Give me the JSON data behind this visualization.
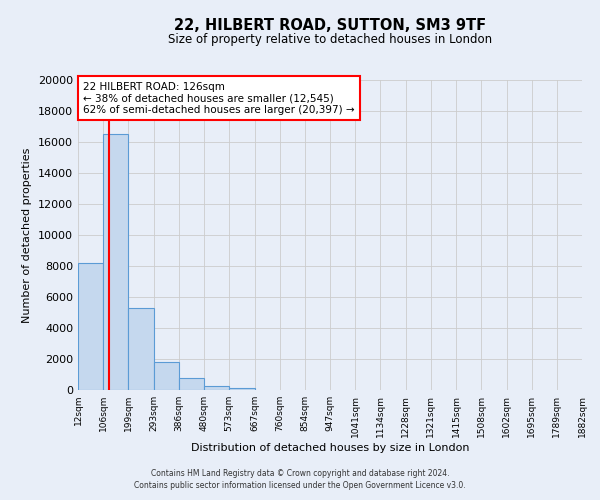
{
  "title_line1": "22, HILBERT ROAD, SUTTON, SM3 9TF",
  "title_line2": "Size of property relative to detached houses in London",
  "xlabel": "Distribution of detached houses by size in London",
  "ylabel": "Number of detached properties",
  "footer_line1": "Contains HM Land Registry data © Crown copyright and database right 2024.",
  "footer_line2": "Contains public sector information licensed under the Open Government Licence v3.0.",
  "annotation_title": "22 HILBERT ROAD: 126sqm",
  "annotation_line1": "← 38% of detached houses are smaller (12,545)",
  "annotation_line2": "62% of semi-detached houses are larger (20,397) →",
  "bar_edges": [
    12,
    106,
    199,
    293,
    386,
    480,
    573,
    667,
    760,
    854,
    947,
    1041,
    1134,
    1228,
    1321,
    1415,
    1508,
    1602,
    1695,
    1789,
    1882
  ],
  "bar_heights": [
    8200,
    16500,
    5300,
    1800,
    750,
    280,
    150,
    0,
    0,
    0,
    0,
    0,
    0,
    0,
    0,
    0,
    0,
    0,
    0,
    0
  ],
  "bar_color": "#c5d8ee",
  "bar_edgecolor": "#5b9bd5",
  "red_line_x": 126,
  "ylim": [
    0,
    20000
  ],
  "yticks": [
    0,
    2000,
    4000,
    6000,
    8000,
    10000,
    12000,
    14000,
    16000,
    18000,
    20000
  ],
  "annotation_box_color": "white",
  "annotation_box_edgecolor": "red",
  "grid_color": "#cccccc",
  "background_color": "#e8eef8"
}
